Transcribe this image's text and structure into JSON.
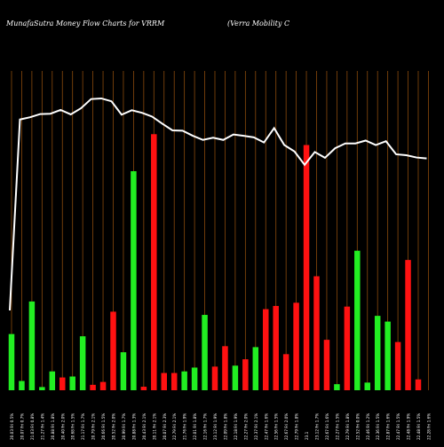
{
  "header": {
    "title": "MunafaSutra  Money Flow  Charts for VRRM",
    "company": "(Verra  Mobility C"
  },
  "chart_data": {
    "type": "bar",
    "title": "MunafaSutra  Money Flow  Charts for VRRM",
    "subtitle": "(Verra  Mobility C",
    "colors": {
      "in": "#22ee22",
      "out": "#ff1111",
      "line": "#ffffff",
      "grid": "#8a4a0c",
      "background": "#000000"
    },
    "categories": [
      "20.03 Fri 0.5%",
      "20.07 Fri 0.7%",
      "21.03 Fri 0.8%",
      "21.27 Fri 1.4%",
      "20.88 Fri 1.8%",
      "20.40 Fri 2.0%",
      "20.68 Fri 1.5%",
      "21.17 Fri 1.7%",
      "20.79 Fri 2.1%",
      "20.66 Fri 1.5%",
      "20.52 Fri 2.0%",
      "20.99 Fri 1.7%",
      "20.88 Fri 1.3%",
      "20.43 Fri 2.1%",
      "20.11 Fri 2.1%",
      "20.07 Fri 2.3%",
      "22.79 Fri 2.1%",
      "21.76 Fri 1.9%",
      "22.01 Fri 1.8%",
      "22.16 Fri 1.7%",
      "23.12 Fri 1.9%",
      "22.09 Fri 1.8%",
      "22.18 Fri 1.9%",
      "22.27 Fri 2.0%",
      "22.37 Fri 2.1%",
      "22.47 Fri 1.6%",
      "22.56 Fri 1.5%",
      "22.67 Fri 2.0%",
      "22.79 Fri 1.8%",
      "23.1",
      "23.12 Fri 1.7%",
      "22.67 Fri 1.6%",
      "22.27 Fri 1.5%",
      "22.79 Fri 1.8%",
      "22.52 Fri 0.0%",
      "22.46 Fri 1.2%",
      "22.36 Fri 1.5%",
      "22.87 Fri 1.6%",
      "22.47 Fri 1.5%",
      "22.48 Fri 1.9%",
      "22.48 Fri 1.5%",
      "22.28 Fri 1.6%"
    ],
    "flow_direction": [
      "in",
      "in",
      "in",
      "in",
      "in",
      "out",
      "in",
      "in",
      "out",
      "out",
      "out",
      "in",
      "in",
      "out",
      "out",
      "out",
      "out",
      "in",
      "in",
      "in",
      "out",
      "out",
      "in",
      "out",
      "in",
      "out",
      "out",
      "out",
      "out",
      "out",
      "out",
      "out",
      "in",
      "out",
      "in",
      "in",
      "in",
      "in",
      "out",
      "out",
      "out",
      "out"
    ],
    "values": [
      17.6,
      2.9,
      27.8,
      1.0,
      5.9,
      4.0,
      4.3,
      16.9,
      1.7,
      2.6,
      24.6,
      11.9,
      68.6,
      1.1,
      80.2,
      5.4,
      5.4,
      5.9,
      7.1,
      23.6,
      7.4,
      13.8,
      7.7,
      9.7,
      13.5,
      25.4,
      26.4,
      11.3,
      27.4,
      76.8,
      35.7,
      15.8,
      1.9,
      26.2,
      43.7,
      2.4,
      23.3,
      21.5,
      15.1,
      40.8,
      3.4,
      0
    ],
    "price_line": [
      25,
      84.8,
      85.5,
      86.5,
      86.6,
      87.8,
      86.4,
      88.3,
      91.2,
      91.4,
      90.5,
      86.3,
      87.7,
      86.9,
      85.7,
      83.5,
      81.4,
      81.3,
      79.7,
      78.4,
      79.1,
      78.4,
      80.1,
      79.7,
      79.2,
      77.6,
      82.1,
      76.8,
      74.8,
      70.6,
      74.6,
      72.8,
      75.8,
      77.3,
      77.3,
      78.2,
      76.8,
      78.0,
      73.9,
      73.6,
      72.9,
      72.6
    ],
    "ylim": [
      0,
      100
    ],
    "grid": "vertical"
  }
}
